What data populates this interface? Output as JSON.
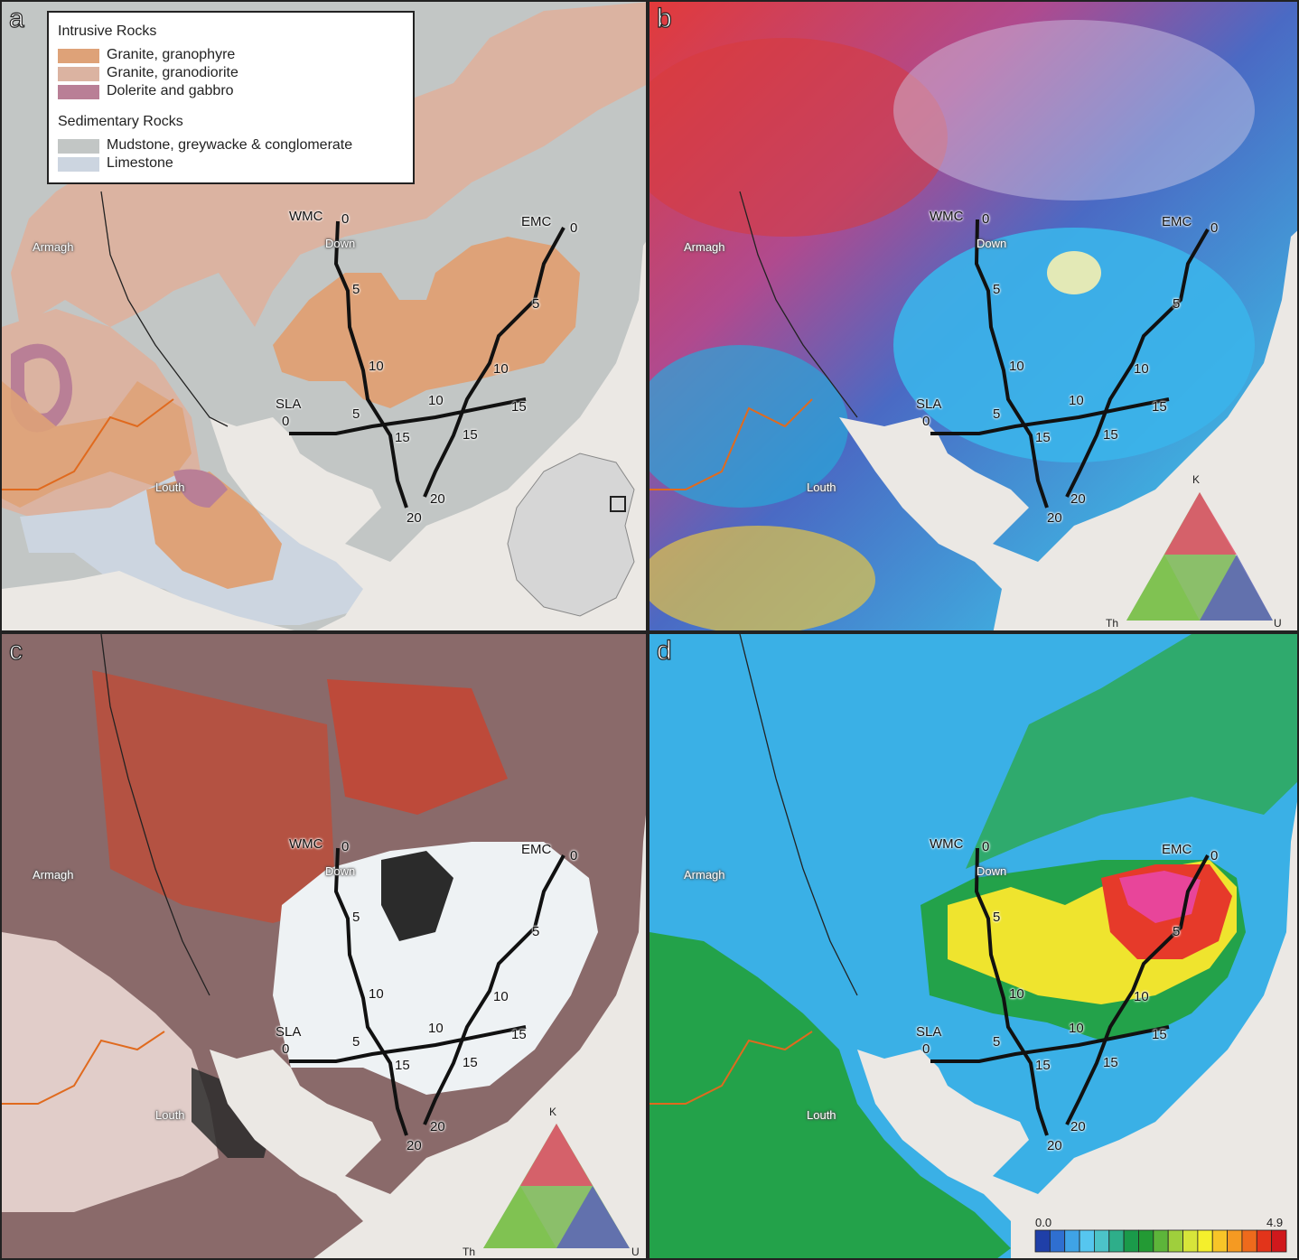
{
  "panels": [
    {
      "letter": "a"
    },
    {
      "letter": "b"
    },
    {
      "letter": "c"
    },
    {
      "letter": "d"
    }
  ],
  "legend": {
    "intrusive_heading": "Intrusive Rocks",
    "sedimentary_heading": "Sedimentary Rocks",
    "items": [
      {
        "label": "Granite, granophyre",
        "color": "#dea278"
      },
      {
        "label": "Granite, granodiorite",
        "color": "#dbb3a1"
      },
      {
        "label": "Dolerite and gabbro",
        "color": "#b97f96"
      },
      {
        "label": "Mudstone, greywacke & conglomerate",
        "color": "#c2c6c5"
      },
      {
        "label": "Limestone",
        "color": "#ccd5e0"
      }
    ]
  },
  "places": {
    "armagh": "Armagh",
    "down": "Down",
    "louth": "Louth"
  },
  "traverses": {
    "wmc": {
      "name": "WMC",
      "marks": [
        "0",
        "5",
        "10",
        "15",
        "20"
      ]
    },
    "emc": {
      "name": "EMC",
      "marks": [
        "0",
        "5",
        "10",
        "15",
        "20"
      ]
    },
    "sla": {
      "name": "SLA",
      "marks": [
        "0",
        "5",
        "10",
        "15"
      ]
    }
  },
  "ternary": {
    "top": "K",
    "left": "Th",
    "right": "U"
  },
  "scale_bar": {
    "min": "0.0",
    "max": "4.9",
    "colors": [
      "#1f3fa8",
      "#2f6fd0",
      "#3fa3e6",
      "#56c6ef",
      "#4cc3c8",
      "#2eae8a",
      "#1a9a4a",
      "#239a34",
      "#5db53a",
      "#9fcf3c",
      "#d7e53a",
      "#f4ef2c",
      "#f8c528",
      "#f59a22",
      "#ee6a1c",
      "#e2341a",
      "#d0181c"
    ]
  },
  "colors": {
    "sea": "#ebe8e4",
    "mudstone": "#c2c6c5",
    "granophyre": "#dea278",
    "granodiorite": "#dbb3a1",
    "dolerite": "#b97f96",
    "limestone": "#ccd5e0",
    "border_orange": "#e06a1e",
    "d_blue": "#3ab0e6",
    "d_green": "#23a24a",
    "d_yellow": "#efe42e",
    "d_red": "#e63a2a",
    "d_pink": "#e8459a"
  }
}
